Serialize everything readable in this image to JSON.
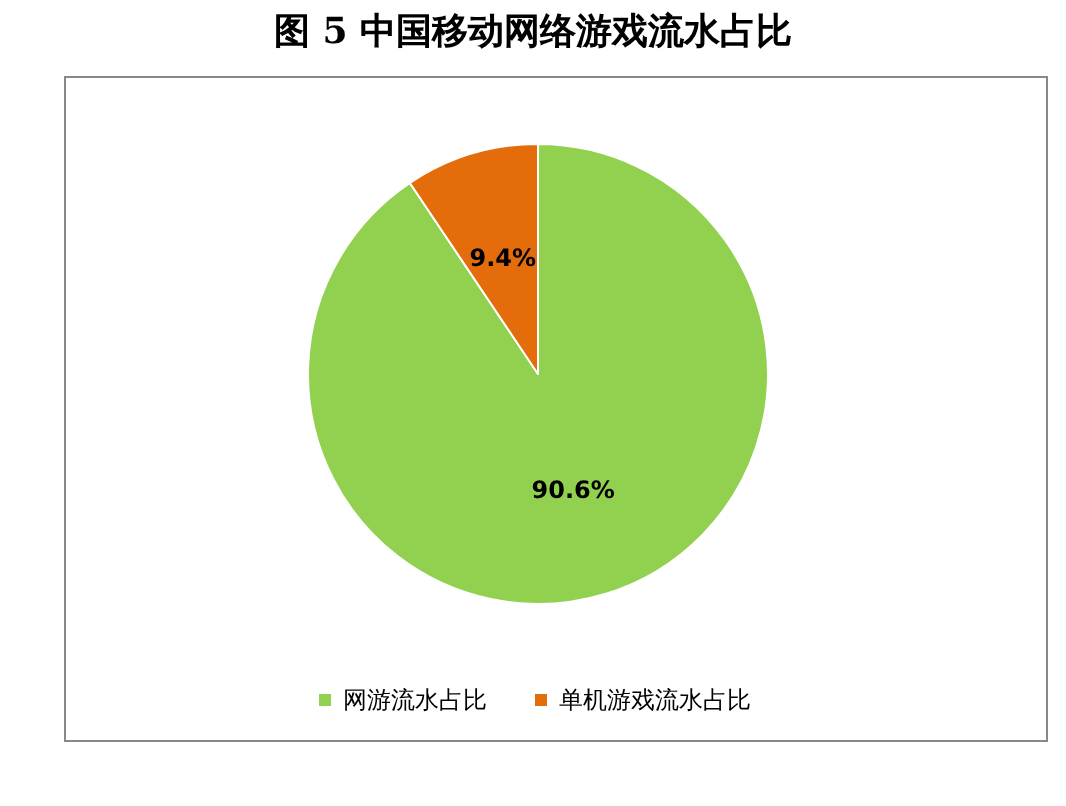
{
  "chart_data": {
    "type": "pie",
    "title": "图 5 中国移动网络游戏流水占比",
    "categories": [
      "网游流水占比",
      "单机游戏流水占比"
    ],
    "values": [
      90.6,
      9.4
    ],
    "value_labels": [
      "90.6%",
      "9.4%"
    ],
    "colors": [
      "#92d050",
      "#e46c0a"
    ],
    "legend": "bottom"
  }
}
